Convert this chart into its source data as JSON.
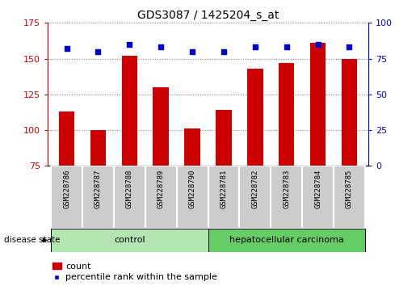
{
  "title": "GDS3087 / 1425204_s_at",
  "samples": [
    "GSM228786",
    "GSM228787",
    "GSM228788",
    "GSM228789",
    "GSM228790",
    "GSM228781",
    "GSM228782",
    "GSM228783",
    "GSM228784",
    "GSM228785"
  ],
  "count_values": [
    113,
    100,
    152,
    130,
    101,
    114,
    143,
    147,
    161,
    150
  ],
  "percentile_values": [
    82,
    80,
    85,
    83,
    80,
    80,
    83,
    83,
    85,
    83
  ],
  "ylim_left": [
    75,
    175
  ],
  "ylim_right": [
    0,
    100
  ],
  "yticks_left": [
    75,
    100,
    125,
    150,
    175
  ],
  "yticks_right": [
    0,
    25,
    50,
    75,
    100
  ],
  "groups": [
    {
      "label": "control",
      "indices": [
        0,
        1,
        2,
        3,
        4
      ],
      "color": "#b3e6b3"
    },
    {
      "label": "hepatocellular carcinoma",
      "indices": [
        5,
        6,
        7,
        8,
        9
      ],
      "color": "#66cc66"
    }
  ],
  "disease_state_label": "disease state",
  "bar_color": "#cc0000",
  "dot_color": "#0000cc",
  "bar_width": 0.5,
  "tick_label_bg": "#cccccc",
  "legend_items": [
    "count",
    "percentile rank within the sample"
  ],
  "grid_dotted": true,
  "figsize": [
    5.15,
    3.54
  ],
  "dpi": 100
}
